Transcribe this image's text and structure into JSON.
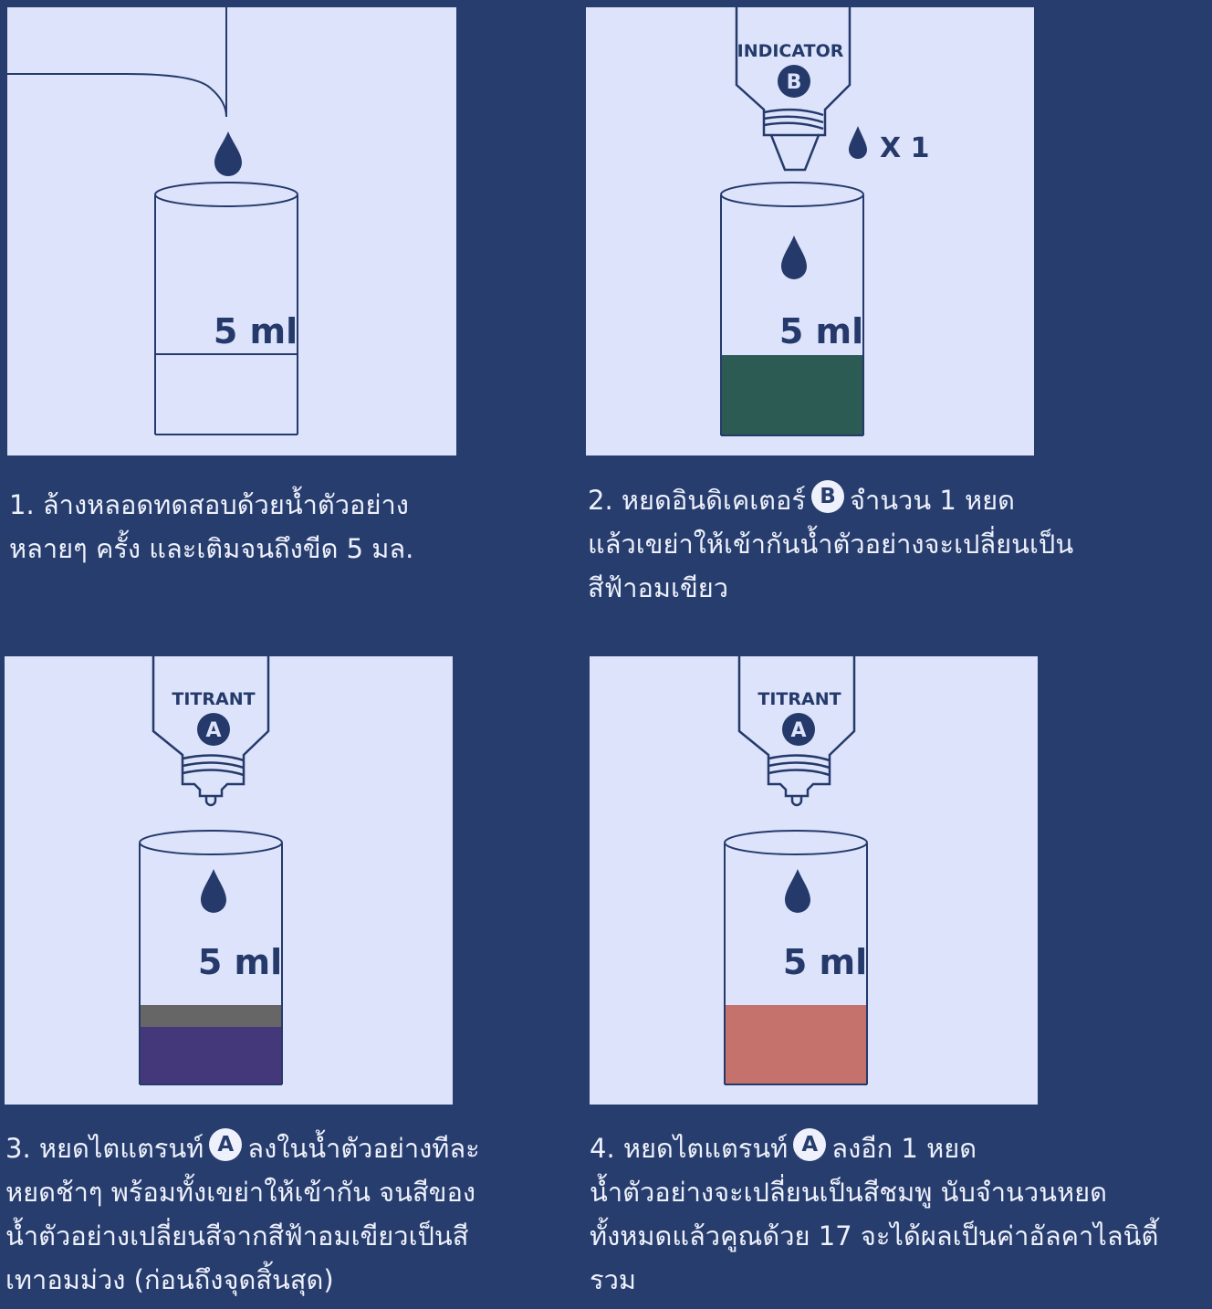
{
  "colors": {
    "background": "#273d6e",
    "panel": "#dce3fb",
    "ink": "#253a6a",
    "green_liquid": "#2c5b53",
    "gray_layer": "#666666",
    "purple_liquid": "#44387a",
    "pink_liquid": "#c5726d"
  },
  "steps": [
    {
      "volume_label": "5 ml",
      "caption_lines": [
        "1. ล้างหลอดทดสอบด้วยน้ำตัวอย่าง",
        "หลายๆ ครั้ง และเติมจนถึงขีด 5 มล."
      ]
    },
    {
      "bottle_label": "INDICATOR",
      "bottle_badge": "B",
      "drop_count": "X 1",
      "volume_label": "5 ml",
      "caption_prefix": "2. หยดอินดิเคเตอร์",
      "caption_badge": "B",
      "caption_suffix": "จำนวน 1 หยด",
      "caption_lines": [
        "แล้วเขย่าให้เข้ากันน้ำตัวอย่างจะเปลี่ยนเป็น",
        "สีฟ้าอมเขียว"
      ]
    },
    {
      "bottle_label": "TITRANT",
      "bottle_badge": "A",
      "volume_label": "5 ml",
      "caption_prefix": "3. หยดไตแตรนท์",
      "caption_badge": "A",
      "caption_suffix": "ลงในน้ำตัวอย่างทีละ",
      "caption_lines": [
        "หยดช้าๆ พร้อมทั้งเขย่าให้เข้ากัน จนสีของ",
        "น้ำตัวอย่างเปลี่ยนสีจากสีฟ้าอมเขียวเป็นสี",
        "เทาอมม่วง (ก่อนถึงจุดสิ้นสุด)"
      ]
    },
    {
      "bottle_label": "TITRANT",
      "bottle_badge": "A",
      "volume_label": "5 ml",
      "caption_prefix": "4. หยดไตแตรนท์",
      "caption_badge": "A",
      "caption_suffix": "ลงอีก 1 หยด",
      "caption_lines": [
        "น้ำตัวอย่างจะเปลี่ยนเป็นสีชมพู นับจำนวนหยด",
        "ทั้งหมดแล้วคูณด้วย 17 จะได้ผลเป็นค่าอัลคาไลนิตี้",
        "รวม"
      ]
    }
  ]
}
